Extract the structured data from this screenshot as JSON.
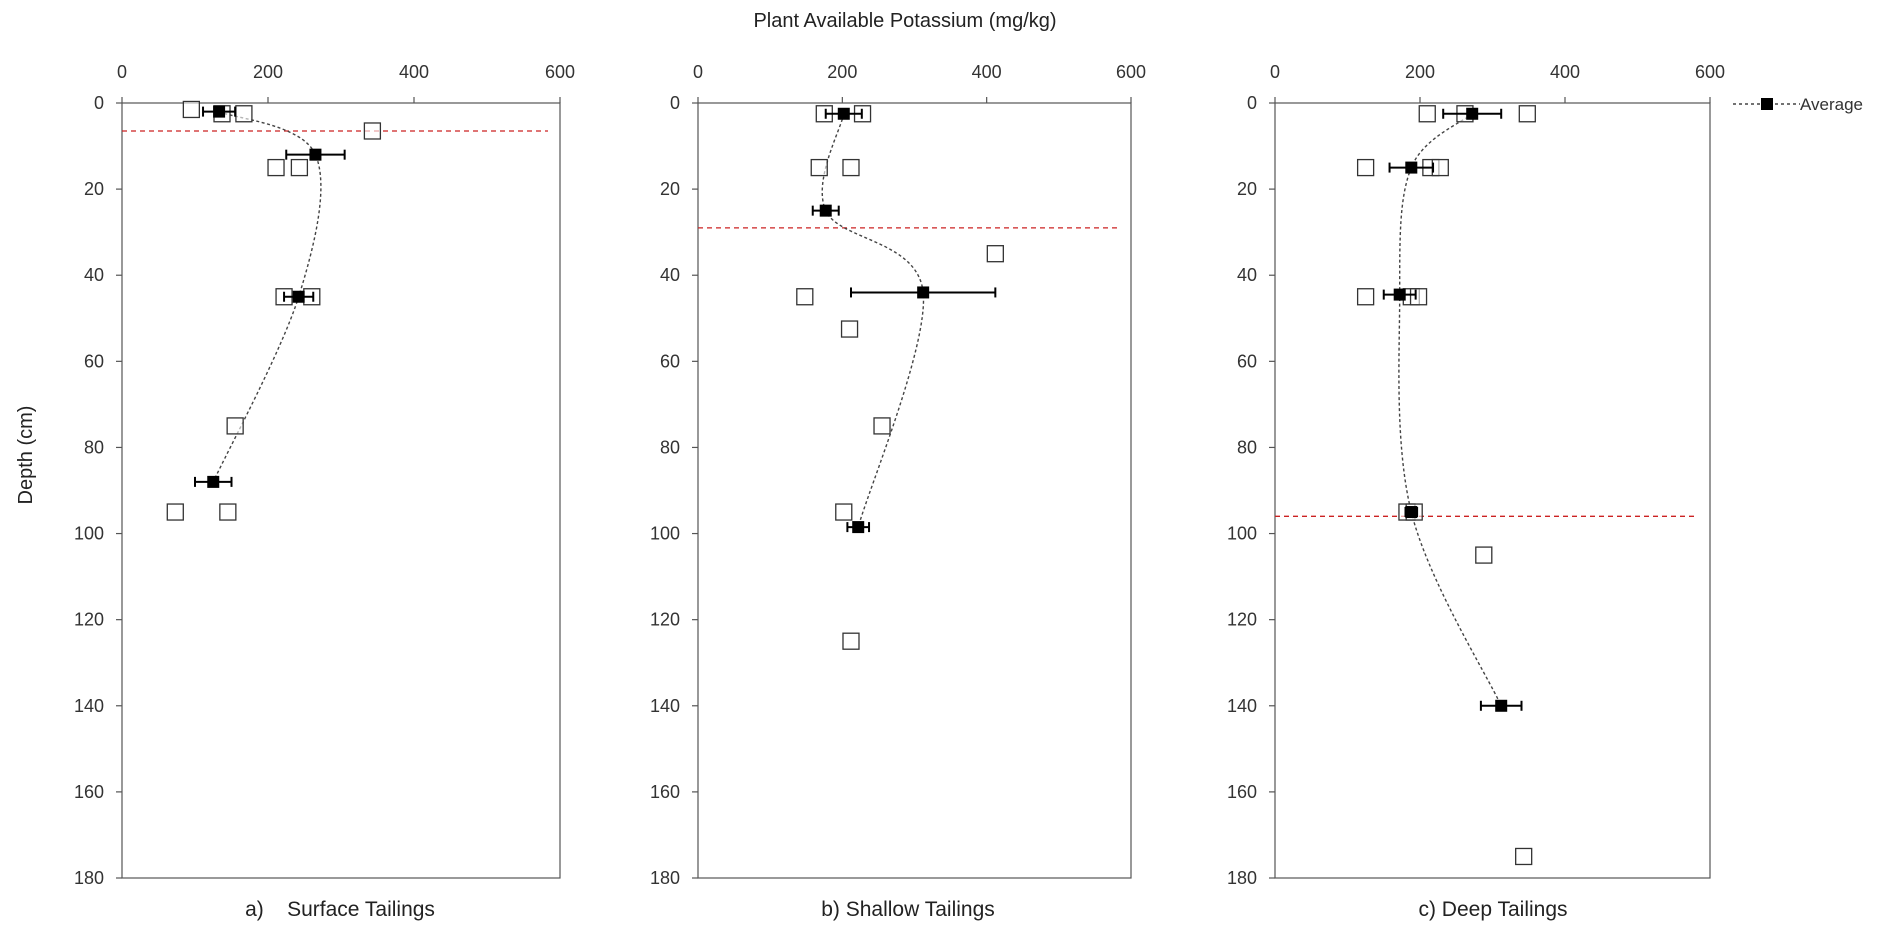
{
  "figure": {
    "title": "Plant Available Potassium (mg/kg)",
    "ylabel": "Depth (cm)",
    "legend_label": "Average"
  },
  "colors": {
    "axis": "#555555",
    "marker_fill": "#000000",
    "marker_open_stroke": "#333333",
    "trend_line": "#444444",
    "boundary_line": "#cc2222"
  },
  "chart_data": [
    {
      "type": "scatter",
      "panel_label": "a)    Surface Tailings",
      "xlim": [
        0,
        600
      ],
      "xticks": [
        0,
        200,
        400,
        600
      ],
      "ylim": [
        0,
        180
      ],
      "yticks": [
        0,
        20,
        40,
        60,
        80,
        100,
        120,
        140,
        160,
        180
      ],
      "y_inverted": true,
      "boundary_depth": 6.5,
      "samples": [
        {
          "x": 95,
          "y": 1.5
        },
        {
          "x": 137,
          "y": 2.5
        },
        {
          "x": 167,
          "y": 2.5
        },
        {
          "x": 343,
          "y": 6.5
        },
        {
          "x": 211,
          "y": 15
        },
        {
          "x": 243,
          "y": 15
        },
        {
          "x": 222,
          "y": 45
        },
        {
          "x": 260,
          "y": 45
        },
        {
          "x": 155,
          "y": 75
        },
        {
          "x": 73,
          "y": 95
        },
        {
          "x": 145,
          "y": 95
        }
      ],
      "averages": [
        {
          "x": 133,
          "y": 2,
          "err": 22
        },
        {
          "x": 265,
          "y": 12,
          "err": 40
        },
        {
          "x": 242,
          "y": 45,
          "err": 20
        },
        {
          "x": 125,
          "y": 88,
          "err": 25
        }
      ],
      "trend": [
        [
          133,
          2
        ],
        [
          265,
          12
        ],
        [
          242,
          45
        ],
        [
          125,
          88
        ]
      ]
    },
    {
      "type": "scatter",
      "panel_label": "b) Shallow Tailings",
      "xlim": [
        0,
        600
      ],
      "xticks": [
        0,
        200,
        400,
        600
      ],
      "ylim": [
        0,
        180
      ],
      "yticks": [
        0,
        20,
        40,
        60,
        80,
        100,
        120,
        140,
        160,
        180
      ],
      "y_inverted": true,
      "boundary_depth": 29,
      "samples": [
        {
          "x": 175,
          "y": 2.5
        },
        {
          "x": 228,
          "y": 2.5
        },
        {
          "x": 168,
          "y": 15
        },
        {
          "x": 212,
          "y": 15
        },
        {
          "x": 412,
          "y": 35
        },
        {
          "x": 148,
          "y": 45
        },
        {
          "x": 210,
          "y": 52.5
        },
        {
          "x": 255,
          "y": 75
        },
        {
          "x": 202,
          "y": 95
        },
        {
          "x": 212,
          "y": 125
        }
      ],
      "averages": [
        {
          "x": 202,
          "y": 2.5,
          "err": 25
        },
        {
          "x": 177,
          "y": 25,
          "err": 18
        },
        {
          "x": 312,
          "y": 44,
          "err": 100
        },
        {
          "x": 222,
          "y": 98.5,
          "err": 15
        }
      ],
      "trend": [
        [
          202,
          2.5
        ],
        [
          177,
          25
        ],
        [
          312,
          44
        ],
        [
          222,
          98.5
        ]
      ]
    },
    {
      "type": "scatter",
      "panel_label": "c) Deep Tailings",
      "xlim": [
        0,
        600
      ],
      "xticks": [
        0,
        200,
        400,
        600
      ],
      "ylim": [
        0,
        180
      ],
      "yticks": [
        0,
        20,
        40,
        60,
        80,
        100,
        120,
        140,
        160,
        180
      ],
      "y_inverted": true,
      "boundary_depth": 96,
      "samples": [
        {
          "x": 210,
          "y": 2.5
        },
        {
          "x": 262,
          "y": 2.5
        },
        {
          "x": 348,
          "y": 2.5
        },
        {
          "x": 125,
          "y": 15
        },
        {
          "x": 215,
          "y": 15
        },
        {
          "x": 228,
          "y": 15
        },
        {
          "x": 125,
          "y": 45
        },
        {
          "x": 188,
          "y": 45
        },
        {
          "x": 198,
          "y": 45
        },
        {
          "x": 182,
          "y": 95
        },
        {
          "x": 192,
          "y": 95
        },
        {
          "x": 288,
          "y": 105
        },
        {
          "x": 343,
          "y": 175
        }
      ],
      "averages": [
        {
          "x": 272,
          "y": 2.5,
          "err": 40
        },
        {
          "x": 188,
          "y": 15,
          "err": 30
        },
        {
          "x": 172,
          "y": 44.5,
          "err": 22
        },
        {
          "x": 188,
          "y": 95,
          "err": 8
        },
        {
          "x": 312,
          "y": 140,
          "err": 28
        }
      ],
      "trend": [
        [
          272,
          2.5
        ],
        [
          188,
          15
        ],
        [
          172,
          44.5
        ],
        [
          188,
          95
        ],
        [
          312,
          140
        ]
      ]
    }
  ]
}
